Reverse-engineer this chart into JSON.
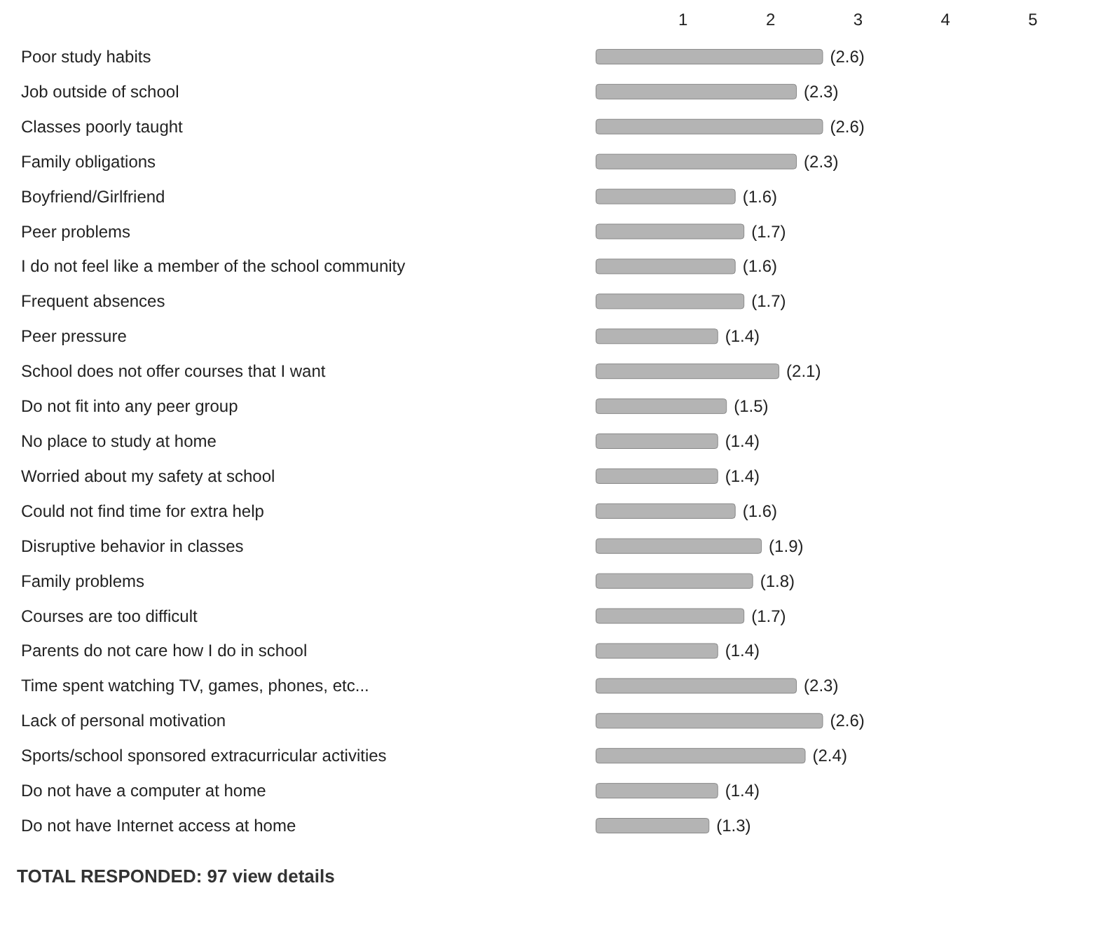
{
  "chart_data": {
    "type": "bar",
    "orientation": "horizontal",
    "categories": [
      "Poor study habits",
      "Job outside of school",
      "Classes poorly taught",
      "Family obligations",
      "Boyfriend/Girlfriend",
      "Peer problems",
      "I do not feel like a member of the school community",
      "Frequent absences",
      "Peer pressure",
      "School does not offer courses that I want",
      "Do not fit into any peer group",
      "No place to study at home",
      "Worried about my safety at school",
      "Could not find time for extra help",
      "Disruptive behavior in classes",
      "Family problems",
      "Courses are too difficult",
      "Parents do not care how I do in school",
      "Time spent watching TV, games, phones, etc...",
      "Lack of personal motivation",
      "Sports/school sponsored extracurricular activities",
      "Do not have a computer at home",
      "Do not have Internet access at home"
    ],
    "values": [
      2.6,
      2.3,
      2.6,
      2.3,
      1.6,
      1.7,
      1.6,
      1.7,
      1.4,
      2.1,
      1.5,
      1.4,
      1.4,
      1.6,
      1.9,
      1.8,
      1.7,
      1.4,
      2.3,
      2.6,
      2.4,
      1.4,
      1.3
    ],
    "value_labels": [
      "(2.6)",
      "(2.3)",
      "(2.6)",
      "(2.3)",
      "(1.6)",
      "(1.7)",
      "(1.6)",
      "(1.7)",
      "(1.4)",
      "(2.1)",
      "(1.5)",
      "(1.4)",
      "(1.4)",
      "(1.6)",
      "(1.9)",
      "(1.8)",
      "(1.7)",
      "(1.4)",
      "(2.3)",
      "(2.6)",
      "(2.4)",
      "(1.4)",
      "(1.3)"
    ],
    "color": "#b4b4b4",
    "x2lim": [
      0,
      5
    ],
    "x2ticks": [
      1,
      2,
      3,
      4,
      5
    ],
    "grid": false,
    "annotations": [
      "TOTAL RESPONDED: 97  view details"
    ]
  }
}
